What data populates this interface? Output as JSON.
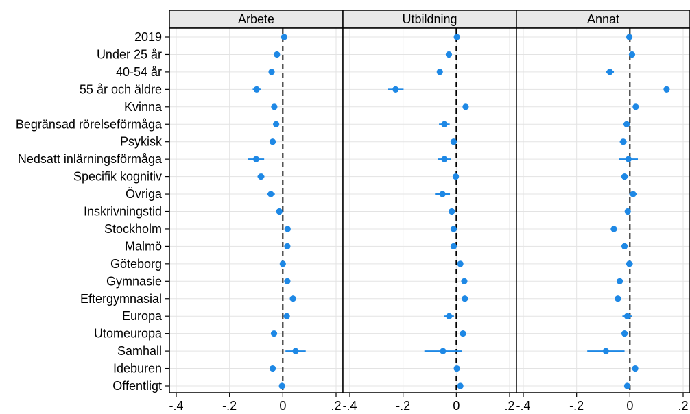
{
  "chart_data": {
    "type": "scatter",
    "subtype": "coefficient-plot-with-confidence-intervals",
    "panels": [
      "Arbete",
      "Utbildning",
      "Annat"
    ],
    "categories": [
      "2019",
      "Under 25 år",
      "40-54 år",
      "55 år och äldre",
      "Kvinna",
      "Begränsad rörelseförmåga",
      "Psykisk",
      "Nedsatt inlärningsförmåga",
      "Specifik kognitiv",
      "Övriga",
      "Inskrivningstid",
      "Stockholm",
      "Malmö",
      "Göteborg",
      "Gymnasie",
      "Eftergymnasial",
      "Europa",
      "Utomeuropa",
      "Samhall",
      "Ideburen",
      "Offentligt"
    ],
    "x_ticks": [
      -0.4,
      -0.2,
      0,
      0.2
    ],
    "x_tick_labels": [
      "-.4",
      "-.2",
      "0",
      ".2"
    ],
    "xlim": [
      -0.4,
      0.2
    ],
    "reference_line": 0,
    "grid": true,
    "marker_color": "#1e88e5",
    "series": [
      {
        "name": "Arbete",
        "estimates": [
          0.005,
          -0.022,
          -0.042,
          -0.098,
          -0.032,
          -0.025,
          -0.038,
          -0.1,
          -0.082,
          -0.045,
          -0.013,
          0.018,
          0.017,
          0.0,
          0.017,
          0.038,
          0.015,
          -0.033,
          0.048,
          -0.038,
          -0.003
        ],
        "ci_low": [
          0.0,
          -0.03,
          -0.052,
          -0.113,
          -0.04,
          -0.036,
          -0.048,
          -0.13,
          -0.095,
          -0.06,
          -0.02,
          0.011,
          0.01,
          -0.01,
          0.01,
          0.03,
          0.004,
          -0.041,
          0.01,
          -0.047,
          -0.008
        ],
        "ci_high": [
          0.01,
          -0.014,
          -0.032,
          -0.083,
          -0.024,
          -0.014,
          -0.028,
          -0.07,
          -0.069,
          -0.03,
          -0.006,
          0.025,
          0.024,
          0.01,
          0.024,
          0.046,
          0.026,
          -0.025,
          0.086,
          -0.029,
          0.002
        ]
      },
      {
        "name": "Utbildning",
        "estimates": [
          0.002,
          -0.028,
          -0.062,
          -0.228,
          0.035,
          -0.045,
          -0.01,
          -0.045,
          -0.002,
          -0.052,
          -0.017,
          -0.01,
          -0.01,
          0.015,
          0.03,
          0.032,
          -0.027,
          0.025,
          -0.05,
          0.002,
          0.015
        ],
        "ci_low": [
          -0.004,
          -0.036,
          -0.07,
          -0.258,
          0.028,
          -0.065,
          -0.02,
          -0.07,
          -0.01,
          -0.08,
          -0.025,
          -0.02,
          -0.02,
          0.008,
          0.022,
          0.025,
          -0.045,
          0.017,
          -0.12,
          -0.005,
          0.007
        ],
        "ci_high": [
          0.008,
          -0.02,
          -0.054,
          -0.198,
          0.042,
          -0.025,
          0.0,
          -0.02,
          0.006,
          -0.024,
          -0.009,
          0.0,
          0.0,
          0.022,
          0.038,
          0.039,
          -0.009,
          0.033,
          0.02,
          0.009,
          0.023
        ]
      },
      {
        "name": "Annat",
        "estimates": [
          -0.002,
          0.008,
          -0.075,
          0.138,
          0.022,
          -0.012,
          -0.025,
          -0.005,
          -0.02,
          0.012,
          -0.008,
          -0.06,
          -0.02,
          -0.002,
          -0.038,
          -0.045,
          -0.01,
          -0.02,
          -0.09,
          0.02,
          -0.01
        ],
        "ci_low": [
          -0.007,
          -0.002,
          -0.09,
          0.128,
          0.016,
          -0.025,
          -0.038,
          -0.04,
          -0.033,
          -0.002,
          -0.013,
          -0.072,
          -0.032,
          -0.015,
          -0.048,
          -0.057,
          -0.028,
          -0.028,
          -0.16,
          0.014,
          -0.016
        ],
        "ci_high": [
          0.003,
          0.018,
          -0.06,
          0.148,
          0.028,
          0.001,
          -0.012,
          0.03,
          -0.007,
          0.026,
          -0.003,
          -0.048,
          -0.008,
          0.011,
          -0.028,
          -0.033,
          0.008,
          -0.012,
          -0.02,
          0.026,
          -0.004
        ]
      }
    ]
  }
}
